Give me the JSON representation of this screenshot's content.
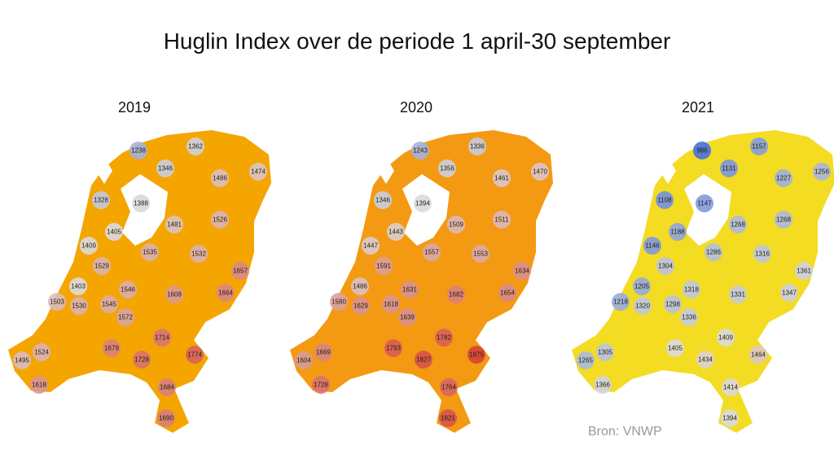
{
  "title": "Huglin Index over de periode 1 april-30 september",
  "maps": [
    {
      "year": "2019",
      "values": [
        1238,
        1362,
        1346,
        1486,
        1474,
        1328,
        1388,
        1405,
        1481,
        1526,
        1409,
        1535,
        1532,
        1657,
        1529,
        1403,
        1546,
        1608,
        1664,
        1503,
        1530,
        1545,
        1572,
        1714,
        1524,
        1679,
        1728,
        1774,
        1495,
        1618,
        1684,
        1690
      ]
    },
    {
      "year": "2020",
      "values": [
        1243,
        1336,
        1356,
        1461,
        1470,
        1346,
        1394,
        1443,
        1509,
        1511,
        1447,
        1557,
        1553,
        1634,
        1591,
        1486,
        1631,
        1682,
        1654,
        1580,
        1629,
        1618,
        1639,
        1782,
        1669,
        1793,
        1827,
        1875,
        1604,
        1728,
        1764,
        1821
      ]
    },
    {
      "year": "2021",
      "values": [
        986,
        1157,
        1131,
        1227,
        1256,
        1108,
        1147,
        1188,
        1268,
        1268,
        1146,
        1286,
        1316,
        1361,
        1304,
        1205,
        1318,
        1331,
        1347,
        1218,
        1320,
        1298,
        1336,
        1409,
        1305,
        1405,
        1434,
        1464,
        1265,
        1366,
        1414,
        1394
      ]
    }
  ],
  "source": "Bron: VNWP"
}
